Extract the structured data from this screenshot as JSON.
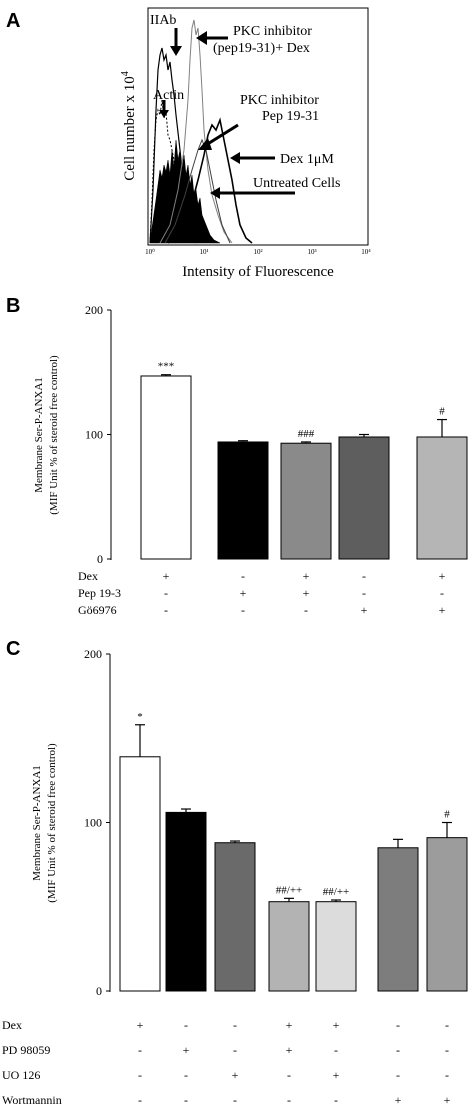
{
  "panels": {
    "A": {
      "letter": "A",
      "chart_data": {
        "type": "area",
        "xlabel": "Intensity of Fluorescence",
        "ylabel": "Cell number x 10",
        "ylabel_sup": "4",
        "xscale": "log",
        "x_ticks": [
          "10⁰",
          "10¹",
          "10²",
          "10³",
          "10⁴"
        ],
        "annotations": [
          {
            "text": "IIAb"
          },
          {
            "text": "PKC inhibitor"
          },
          {
            "text": "(pep19-31)+ Dex"
          },
          {
            "text": "Actin"
          },
          {
            "text": "PKC inhibitor"
          },
          {
            "text": "Pep 19-31"
          },
          {
            "text": "Dex 1μM"
          },
          {
            "text": "Untreated Cells"
          }
        ]
      }
    },
    "B": {
      "letter": "B",
      "chart_data": {
        "type": "bar",
        "ylabel_line1": "Membrane Ser-P-ANXA1",
        "ylabel_line2": "(MIF Unit % of steroid free control)",
        "ylim": [
          0,
          200
        ],
        "yticks": [
          "0",
          "100",
          "200"
        ],
        "bars": [
          {
            "value": 147,
            "error": 1,
            "color": "#ffffff",
            "sig": "***"
          },
          {
            "value": 94,
            "error": 1,
            "color": "#000000",
            "sig": ""
          },
          {
            "value": 93,
            "error": 1,
            "color": "#8a8a8a",
            "sig": "###"
          },
          {
            "value": 98,
            "error": 2,
            "color": "#5e5e5e",
            "sig": ""
          },
          {
            "value": 98,
            "error": 14,
            "color": "#b5b5b5",
            "sig": "#"
          }
        ],
        "conditions": [
          {
            "label": "Dex",
            "signs": [
              "+",
              "-",
              "+",
              "-",
              "+"
            ]
          },
          {
            "label": "Pep 19-3",
            "signs": [
              "-",
              "+",
              "+",
              "-",
              "-"
            ]
          },
          {
            "label": "Gö6976",
            "signs": [
              "-",
              "-",
              "-",
              "+",
              "+"
            ]
          }
        ]
      }
    },
    "C": {
      "letter": "C",
      "chart_data": {
        "type": "bar",
        "ylabel_line1": "Membrane Ser-P-ANXA1",
        "ylabel_line2": "(MIF Unit % of steroid free control)",
        "ylim": [
          0,
          200
        ],
        "yticks": [
          "0",
          "100",
          "200"
        ],
        "bars": [
          {
            "value": 139,
            "error": 19,
            "color": "#ffffff",
            "sig": "*"
          },
          {
            "value": 106,
            "error": 2,
            "color": "#000000",
            "sig": ""
          },
          {
            "value": 88,
            "error": 1,
            "color": "#6a6a6a",
            "sig": ""
          },
          {
            "value": 53,
            "error": 2,
            "color": "#b3b3b3",
            "sig": "##/++"
          },
          {
            "value": 53,
            "error": 1,
            "color": "#dcdcdc",
            "sig": "##/++"
          },
          {
            "value": 85,
            "error": 5,
            "color": "#7d7d7d",
            "sig": ""
          },
          {
            "value": 91,
            "error": 9,
            "color": "#9c9c9c",
            "sig": "#"
          }
        ],
        "conditions": [
          {
            "label": "Dex",
            "signs": [
              "+",
              "-",
              "-",
              "+",
              "+",
              "-",
              "-"
            ]
          },
          {
            "label": "PD 98059",
            "signs": [
              "-",
              "+",
              "-",
              "+",
              "-",
              "-",
              "-"
            ]
          },
          {
            "label": "UO 126",
            "signs": [
              "-",
              "-",
              "+",
              "-",
              "+",
              "-",
              "-"
            ]
          },
          {
            "label": "Wortmannin",
            "signs": [
              "-",
              "-",
              "-",
              "-",
              "-",
              "+",
              "+"
            ]
          }
        ]
      }
    }
  }
}
